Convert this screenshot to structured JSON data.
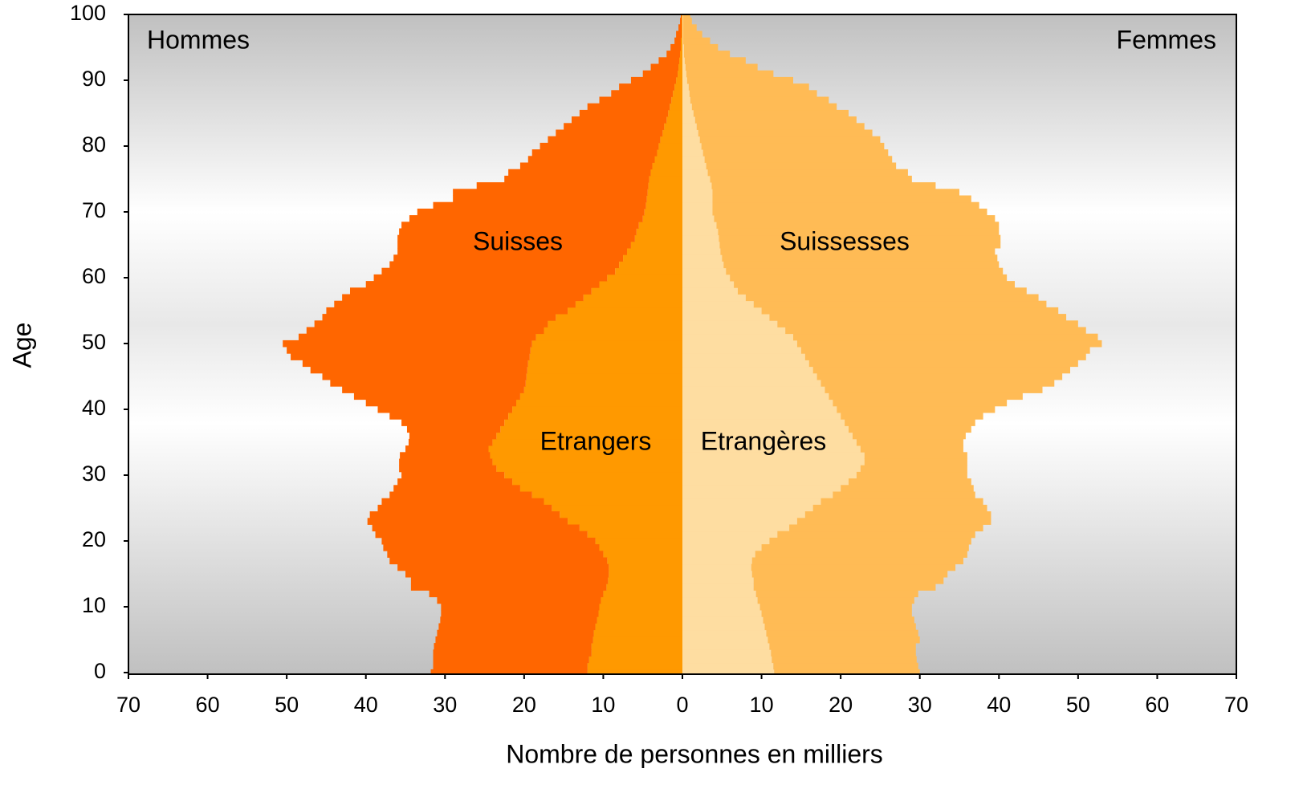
{
  "chart_data": {
    "type": "pyramid",
    "xlabel": "Nombre de personnes en milliers",
    "ylabel": "Age",
    "annotations": [
      "Hommes",
      "Femmes"
    ],
    "xlim": [
      -70,
      70
    ],
    "xticks": [
      {
        "value": -70,
        "label": "70"
      },
      {
        "value": -60,
        "label": "60"
      },
      {
        "value": -50,
        "label": "50"
      },
      {
        "value": -40,
        "label": "40"
      },
      {
        "value": -30,
        "label": "30"
      },
      {
        "value": -20,
        "label": "20"
      },
      {
        "value": -10,
        "label": "10"
      },
      0,
      10,
      20,
      30,
      40,
      50,
      60,
      70
    ],
    "ylim": [
      0,
      100
    ],
    "yticks": [
      0,
      10,
      20,
      30,
      40,
      50,
      60,
      70,
      80,
      90,
      100
    ],
    "y": [
      0,
      1,
      2,
      3,
      4,
      5,
      6,
      7,
      8,
      9,
      10,
      11,
      12,
      13,
      14,
      15,
      16,
      17,
      18,
      19,
      20,
      21,
      22,
      23,
      24,
      25,
      26,
      27,
      28,
      29,
      30,
      31,
      32,
      33,
      34,
      35,
      36,
      37,
      38,
      39,
      40,
      41,
      42,
      43,
      44,
      45,
      46,
      47,
      48,
      49,
      50,
      51,
      52,
      53,
      54,
      55,
      56,
      57,
      58,
      59,
      60,
      61,
      62,
      63,
      64,
      65,
      66,
      67,
      68,
      69,
      70,
      71,
      72,
      73,
      74,
      75,
      76,
      77,
      78,
      79,
      80,
      81,
      82,
      83,
      84,
      85,
      86,
      87,
      88,
      89,
      90,
      91,
      92,
      93,
      94,
      95,
      96,
      97,
      98,
      99,
      100
    ],
    "series": [
      {
        "name": "Etrangers",
        "side": "left",
        "color": "#ff9900",
        "values": [
          12.0,
          12.0,
          11.8,
          11.5,
          11.5,
          11.3,
          11.2,
          11.0,
          10.8,
          10.6,
          10.5,
          10.3,
          10.0,
          9.6,
          9.4,
          9.3,
          9.3,
          9.5,
          10.0,
          10.5,
          11.0,
          12.0,
          13.0,
          14.5,
          15.5,
          16.5,
          17.5,
          19.0,
          20.5,
          21.5,
          22.5,
          23.5,
          24.0,
          24.3,
          24.5,
          24.0,
          23.5,
          23.0,
          22.5,
          22.0,
          21.5,
          21.0,
          20.5,
          20.0,
          19.8,
          19.7,
          19.6,
          19.5,
          19.3,
          19.2,
          19.0,
          18.5,
          17.5,
          17.0,
          16.0,
          14.5,
          13.5,
          12.5,
          11.5,
          10.5,
          9.5,
          8.5,
          8.0,
          7.5,
          7.0,
          6.5,
          6.0,
          5.8,
          5.5,
          5.0,
          4.8,
          4.6,
          4.5,
          4.4,
          4.3,
          4.2,
          4.0,
          3.8,
          3.5,
          3.2,
          3.0,
          2.8,
          2.5,
          2.3,
          2.0,
          1.8,
          1.6,
          1.4,
          1.2,
          1.0,
          0.8,
          0.6,
          0.5,
          0.4,
          0.3,
          0.2,
          0.2,
          0.1,
          0.1,
          0.1,
          0.1
        ]
      },
      {
        "name": "Suisses",
        "side": "left",
        "color": "#ff6600",
        "values": [
          19.8,
          19.5,
          19.7,
          20.0,
          19.9,
          19.9,
          19.8,
          19.8,
          19.8,
          19.9,
          20.0,
          20.7,
          22.0,
          24.7,
          24.9,
          25.7,
          26.7,
          27.5,
          27.3,
          27.3,
          27.0,
          26.8,
          26.2,
          25.3,
          24.0,
          22.0,
          20.5,
          18.0,
          16.0,
          14.5,
          13.0,
          12.3,
          11.8,
          11.4,
          10.5,
          10.6,
          11.0,
          11.8,
          13.0,
          15.0,
          17.0,
          19.0,
          21.0,
          23.0,
          24.7,
          25.8,
          27.4,
          28.5,
          30.2,
          30.8,
          31.5,
          30.0,
          30.0,
          29.5,
          29.5,
          30.5,
          30.5,
          30.5,
          30.5,
          29.5,
          29.5,
          29.5,
          29.0,
          29.0,
          29.0,
          29.5,
          30.0,
          30.0,
          30.0,
          29.5,
          28.7,
          26.9,
          24.5,
          24.6,
          21.7,
          18.3,
          18.0,
          16.7,
          16.0,
          15.8,
          15.0,
          14.2,
          13.5,
          12.7,
          12.0,
          11.2,
          10.4,
          9.1,
          7.8,
          7.0,
          5.7,
          4.4,
          3.5,
          2.6,
          1.7,
          1.3,
          0.8,
          0.7,
          0.4,
          0.2,
          0.1
        ]
      },
      {
        "name": "Etrangères",
        "side": "right",
        "color": "#fedda1",
        "values": [
          11.6,
          11.5,
          11.3,
          11.2,
          11.0,
          10.8,
          10.6,
          10.4,
          10.2,
          10.0,
          9.8,
          9.5,
          9.3,
          9.0,
          9.0,
          8.8,
          8.7,
          8.8,
          9.2,
          10.0,
          11.0,
          12.0,
          13.5,
          14.5,
          15.5,
          16.5,
          17.5,
          19.0,
          20.0,
          21.0,
          22.0,
          22.5,
          23.0,
          23.0,
          22.5,
          22.0,
          21.5,
          21.0,
          20.5,
          20.0,
          19.5,
          19.0,
          18.5,
          18.0,
          17.5,
          17.0,
          16.5,
          16.0,
          15.5,
          15.0,
          14.5,
          14.0,
          13.0,
          12.0,
          11.0,
          10.0,
          9.0,
          8.0,
          7.0,
          6.5,
          6.0,
          5.5,
          5.2,
          5.0,
          4.8,
          4.7,
          4.6,
          4.5,
          4.3,
          4.0,
          3.8,
          3.8,
          3.8,
          3.8,
          3.7,
          3.5,
          3.2,
          3.0,
          2.8,
          2.6,
          2.4,
          2.2,
          2.0,
          1.8,
          1.6,
          1.4,
          1.2,
          1.0,
          0.9,
          0.8,
          0.6,
          0.5,
          0.4,
          0.3,
          0.2,
          0.2,
          0.1,
          0.1,
          0.1,
          0.1,
          0.1
        ]
      },
      {
        "name": "Suissesses",
        "side": "right",
        "color": "#ffbb55",
        "values": [
          18.4,
          18.3,
          18.3,
          18.3,
          18.5,
          19.2,
          19.2,
          19.1,
          19.1,
          19.0,
          19.2,
          19.8,
          20.5,
          23.0,
          24.0,
          24.7,
          25.8,
          26.7,
          26.8,
          26.2,
          25.5,
          25.0,
          24.5,
          24.5,
          23.5,
          22.0,
          20.5,
          18.0,
          16.8,
          15.5,
          14.0,
          13.5,
          13.0,
          13.0,
          13.0,
          13.5,
          14.3,
          15.5,
          16.5,
          18.0,
          20.0,
          22.0,
          24.5,
          27.5,
          29.5,
          31.0,
          32.5,
          34.0,
          35.5,
          36.5,
          38.5,
          38.5,
          38.0,
          38.0,
          37.5,
          37.5,
          37.0,
          37.0,
          36.5,
          35.5,
          35.0,
          35.0,
          34.8,
          34.8,
          34.7,
          35.5,
          35.6,
          35.5,
          35.7,
          35.5,
          34.7,
          33.7,
          32.7,
          31.2,
          28.3,
          25.5,
          25.3,
          24.0,
          23.7,
          23.4,
          23.1,
          22.8,
          22.0,
          21.2,
          20.4,
          19.6,
          18.3,
          17.5,
          16.1,
          15.2,
          13.4,
          11.0,
          9.1,
          7.7,
          5.8,
          4.3,
          3.4,
          2.4,
          1.7,
          1.1,
          0.9
        ]
      }
    ]
  }
}
